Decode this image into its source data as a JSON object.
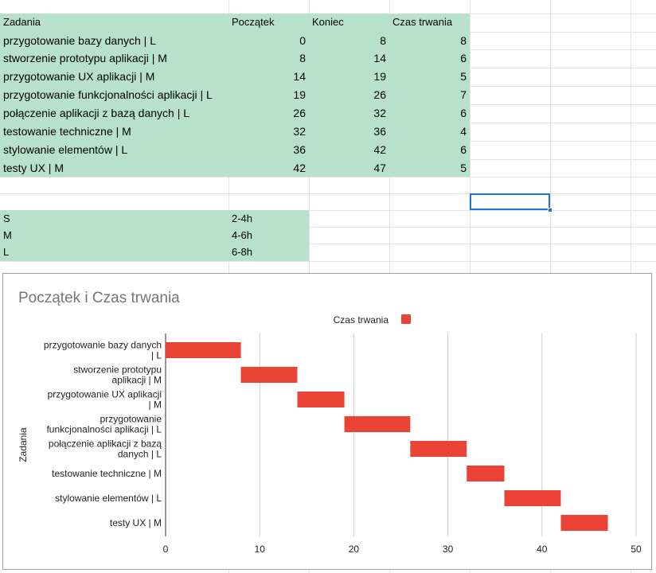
{
  "sheet": {
    "headers": [
      "Zadania",
      "Początek",
      "Koniec",
      "Czas trwania"
    ],
    "tasks": [
      {
        "name": "przygotowanie bazy danych   | L",
        "start": "0",
        "end": "8",
        "duration": "8"
      },
      {
        "name": "stworzenie prototypu aplikacji   | M",
        "start": "8",
        "end": "14",
        "duration": "6"
      },
      {
        "name": "przygotowanie UX aplikacji   | M",
        "start": "14",
        "end": "19",
        "duration": "5"
      },
      {
        "name": "przygotowanie funkcjonalności aplikacji | L",
        "start": "19",
        "end": "26",
        "duration": "7"
      },
      {
        "name": "połączenie aplikacji z bazą danych  | L",
        "start": "26",
        "end": "32",
        "duration": "6"
      },
      {
        "name": "testowanie techniczne   | M",
        "start": "32",
        "end": "36",
        "duration": "4"
      },
      {
        "name": "stylowanie elementów    | L",
        "start": "36",
        "end": "42",
        "duration": "6"
      },
      {
        "name": "testy UX     | M",
        "start": "42",
        "end": "47",
        "duration": "5"
      }
    ],
    "sizes": [
      {
        "key": "S",
        "range": "2-4h"
      },
      {
        "key": "M",
        "range": "4-6h"
      },
      {
        "key": "L",
        "range": "6-8h"
      }
    ]
  },
  "chart_data": {
    "type": "bar",
    "orientation": "horizontal",
    "stacked": true,
    "title": "Początek i Czas trwania",
    "ylabel": "Zadania",
    "xlabel": "",
    "categories": [
      [
        "przygotowanie bazy danych",
        "| L"
      ],
      [
        "stworzenie prototypu",
        "aplikacji   | M"
      ],
      [
        "przygotowanie UX aplikacji",
        "| M"
      ],
      [
        "przygotowanie",
        "funkcjonalności aplikacji | L"
      ],
      [
        "połączenie aplikacji z bazą",
        "danych  | L"
      ],
      [
        "testowanie techniczne    | M"
      ],
      [
        "stylowanie elementów    | L"
      ],
      [
        "testy UX     | M"
      ]
    ],
    "series": [
      {
        "values": [
          0,
          8,
          14,
          19,
          26,
          32,
          36,
          42
        ],
        "color": "none"
      },
      {
        "name": "Czas trwania",
        "values": [
          8,
          6,
          5,
          7,
          6,
          4,
          6,
          5
        ],
        "color": "#ea4335"
      }
    ],
    "xlim": [
      0,
      50
    ],
    "xticks": [
      "0",
      "10",
      "20",
      "30",
      "40",
      "50"
    ],
    "grid": true,
    "legend": "top"
  }
}
